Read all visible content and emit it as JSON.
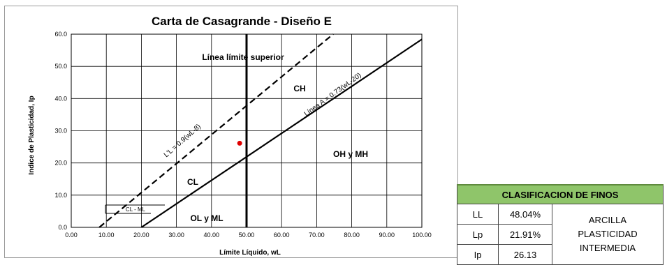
{
  "chart_data": {
    "type": "scatter",
    "title": "Carta de Casagrande - Diseño E",
    "xlabel": "Límite Líquido, wL",
    "ylabel": "Indice de Plasticidad, Ip",
    "xlim": [
      0,
      100
    ],
    "ylim": [
      0,
      60
    ],
    "xticks": [
      "0.00",
      "10.00",
      "20.00",
      "30.00",
      "40.00",
      "50.00",
      "60.00",
      "70.00",
      "80.00",
      "90.00",
      "100.00"
    ],
    "yticks": [
      "0.0",
      "10.0",
      "20.0",
      "30.0",
      "40.0",
      "50.0",
      "60.0"
    ],
    "grid": true,
    "lines": [
      {
        "name": "Línea A = 0.73(wL-20)",
        "style": "solid",
        "points": [
          [
            20,
            0
          ],
          [
            100,
            58.4
          ]
        ]
      },
      {
        "name": "L'L = 0.9(wL-8)",
        "style": "dashed",
        "points": [
          [
            8,
            0
          ],
          [
            74.7,
            60
          ]
        ]
      },
      {
        "name": "wL = 50",
        "style": "solid-thick",
        "points": [
          [
            50,
            0
          ],
          [
            50,
            60
          ]
        ]
      }
    ],
    "points": [
      {
        "x": 48.04,
        "y": 26.13,
        "color": "#e00000"
      }
    ],
    "regions": [
      "Línea límite superior",
      "CH",
      "CL",
      "OH y MH",
      "OL y ML",
      "CL - ML"
    ],
    "line_labels": [
      "Línea A = 0.73(wL-20)",
      "L'L = 0.9(wL-8)"
    ]
  },
  "table": {
    "header": "CLASIFICACION DE FINOS",
    "rows": [
      {
        "key": "LL",
        "value": "48.04%"
      },
      {
        "key": "Lp",
        "value": "21.91%"
      },
      {
        "key": "Ip",
        "value": "26.13"
      }
    ],
    "result": [
      "ARCILLA",
      "PLASTICIDAD",
      "INTERMEDIA"
    ]
  }
}
